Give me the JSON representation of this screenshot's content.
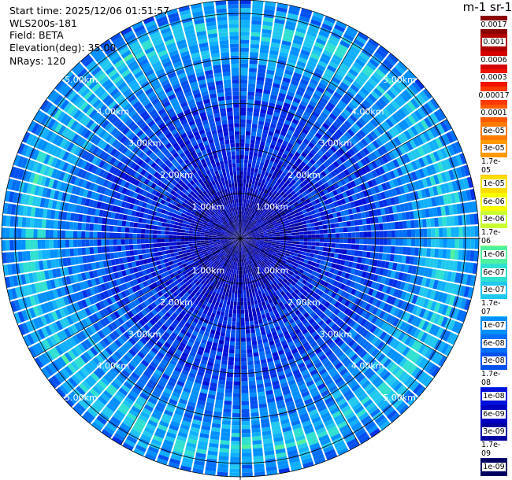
{
  "header": {
    "start_time": "Start time: 2025/12/06 01:51:57",
    "instrument": "WLS200s-181",
    "field": "Field: BETA",
    "elevation": "Elevation(deg): 35.00",
    "nrays": "NRays: 120"
  },
  "colorbar": {
    "title": "m-1 sr-1",
    "labels": [
      "0.0017",
      "0.001",
      "0.0006",
      "0.0003",
      "0.00017",
      "0.0001",
      "6e-05",
      "3e-05",
      "1.7e-05",
      "1e-05",
      "6e-06",
      "3e-06",
      "1.7e-06",
      "1e-06",
      "6e-07",
      "3e-07",
      "1.7e-07",
      "1e-07",
      "6e-08",
      "3e-08",
      "1.7e-08",
      "1e-08",
      "6e-09",
      "3e-09",
      "1.7e-09",
      "1e-09"
    ],
    "colors": [
      "#8b0000",
      "#b00000",
      "#d40000",
      "#f01400",
      "#ff3a00",
      "#ff5a00",
      "#ff7a00",
      "#ff9a00",
      "#ffbb00",
      "#ffdd00",
      "#f8ff00",
      "#c8ff30",
      "#90ff70",
      "#50f0a0",
      "#30e0d0",
      "#20c8f0",
      "#10b0ff",
      "#0090ff",
      "#0070f8",
      "#0050f0",
      "#0030e8",
      "#0010d8",
      "#0000c0",
      "#0000a0",
      "#000080",
      "#000060"
    ]
  },
  "chart_data": {
    "type": "heatmap",
    "projection": "polar (PPI scan)",
    "field": "BETA",
    "units": "m-1 sr-1",
    "elevation_deg": 35.0,
    "n_rays": 120,
    "range_max_km": 5.3,
    "range_rings_km": [
      1.0,
      2.0,
      3.0,
      4.0,
      5.0
    ],
    "ring_labels": [
      "1.00km",
      "2.00km",
      "3.00km",
      "4.00km",
      "5.00km"
    ],
    "spokes_deg": [
      0,
      30,
      60,
      90,
      120,
      150,
      180,
      210,
      240,
      270,
      300,
      330
    ],
    "radial_profile": [
      {
        "range_km": 0.0,
        "beta": 3e-09
      },
      {
        "range_km": 1.0,
        "beta": 6e-09
      },
      {
        "range_km": 2.0,
        "beta": 2e-08
      },
      {
        "range_km": 3.0,
        "beta": 3e-08
      },
      {
        "range_km": 4.0,
        "beta": 1e-07
      },
      {
        "range_km": 4.7,
        "beta": 3e-07
      },
      {
        "range_km": 5.3,
        "beta": 6e-08
      }
    ],
    "color_scale": "log",
    "clim": [
      1e-09,
      0.0017
    ]
  }
}
